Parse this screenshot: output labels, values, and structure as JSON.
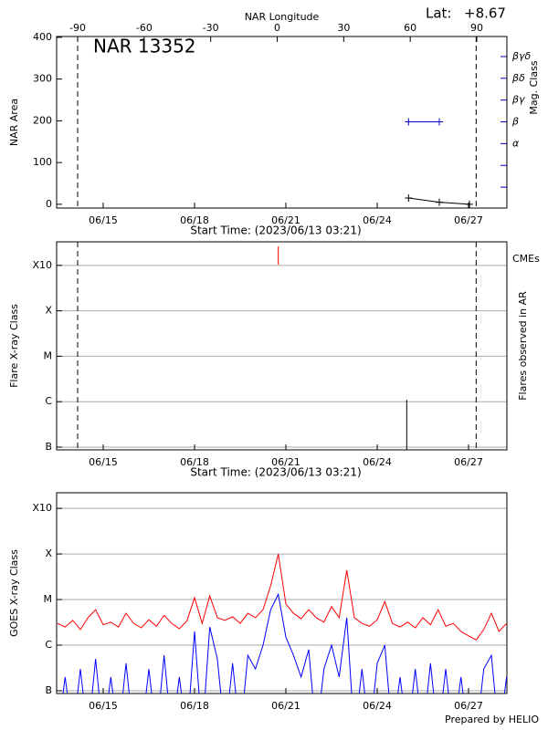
{
  "chart_data": [
    {
      "type": "line",
      "title": "NAR 13352",
      "annotations": [
        "Lat:",
        "+8.67"
      ],
      "xlabel": "Start Time: (2023/06/13 03:21)",
      "ylabel": "NAR Area",
      "y2label": "Mag. Class",
      "x2label": "NAR Longitude",
      "xlim": [
        13.47,
        28.26
      ],
      "xticks": [
        {
          "value": 15,
          "label": "06/15"
        },
        {
          "value": 18,
          "label": "06/18"
        },
        {
          "value": 21,
          "label": "06/21"
        },
        {
          "value": 24,
          "label": "06/24"
        },
        {
          "value": 27,
          "label": "06/27"
        }
      ],
      "ylim": [
        -9,
        402
      ],
      "yticks": [
        0,
        100,
        200,
        300,
        400
      ],
      "x2lim": [
        -99.5,
        103.6
      ],
      "x2ticks": [
        -90,
        -60,
        -30,
        0,
        30,
        60,
        90
      ],
      "y2lim": [
        -1.96,
        5.92
      ],
      "y2ticks": [
        {
          "value": -1,
          "label": null
        },
        {
          "value": 0,
          "label": null
        },
        {
          "value": 1,
          "label": "α"
        },
        {
          "value": 2,
          "label": "β"
        },
        {
          "value": 3,
          "label": "βγ"
        },
        {
          "value": 4,
          "label": "βδ"
        },
        {
          "value": 5,
          "label": "βγδ"
        }
      ],
      "y2color": "#0000cc",
      "limb_lines": [
        14.16,
        27.25
      ],
      "series": [
        {
          "x": [
            25.03,
            26.04,
            27.03
          ],
          "values": [
            15,
            5,
            0
          ],
          "color": "#000000"
        },
        {
          "x": [
            25.03,
            26.04
          ],
          "values": [
            2,
            2
          ],
          "color": "#0000cc",
          "axis": "y2"
        }
      ]
    },
    {
      "type": "bar",
      "xlabel": "Start Time: (2023/06/13 03:21)",
      "ylabel": "Flare X-ray Class",
      "y2label": "Flares observed in AR",
      "xlim": [
        13.47,
        28.26
      ],
      "xticks": [
        {
          "value": 15,
          "label": "06/15"
        },
        {
          "value": 18,
          "label": "06/18"
        },
        {
          "value": 21,
          "label": "06/21"
        },
        {
          "value": 24,
          "label": "06/24"
        },
        {
          "value": 27,
          "label": "06/27"
        }
      ],
      "ylog": true,
      "ylim": [
        8.7e-08,
        0.0033
      ],
      "yticks": [
        {
          "value": 1e-07,
          "label": "B"
        },
        {
          "value": 1e-06,
          "label": "C"
        },
        {
          "value": 1e-05,
          "label": "M"
        },
        {
          "value": 0.0001,
          "label": "X"
        },
        {
          "value": 0.001,
          "label": "X10"
        }
      ],
      "grid": true,
      "limb_lines": [
        14.16,
        27.25
      ],
      "series": [
        {
          "x": [
            24.97
          ],
          "values": [
            1.1e-06
          ],
          "color": "#000000"
        }
      ],
      "cmes": {
        "label": "CMEs",
        "color": "#ff0000",
        "x": [
          20.75
        ]
      }
    },
    {
      "type": "line",
      "ylabel": "GOES X-ray Class",
      "xlim": [
        13.47,
        28.26
      ],
      "xticks": [
        {
          "value": 15,
          "label": "06/15"
        },
        {
          "value": 18,
          "label": "06/18"
        },
        {
          "value": 21,
          "label": "06/21"
        },
        {
          "value": 24,
          "label": "06/24"
        },
        {
          "value": 27,
          "label": "06/27"
        }
      ],
      "ylog": true,
      "ylim": [
        8.7e-08,
        0.0022
      ],
      "yticks": [
        {
          "value": 1e-07,
          "label": "B"
        },
        {
          "value": 1e-06,
          "label": "C"
        },
        {
          "value": 1e-05,
          "label": "M"
        },
        {
          "value": 0.0001,
          "label": "X"
        },
        {
          "value": 0.001,
          "label": "X10"
        }
      ],
      "grid": true,
      "x": [
        13.5,
        13.75,
        14.0,
        14.25,
        14.5,
        14.75,
        15.0,
        15.25,
        15.5,
        15.75,
        16.0,
        16.25,
        16.5,
        16.75,
        17.0,
        17.25,
        17.5,
        17.75,
        18.0,
        18.25,
        18.5,
        18.75,
        19.0,
        19.25,
        19.5,
        19.75,
        20.0,
        20.25,
        20.5,
        20.75,
        21.0,
        21.25,
        21.5,
        21.75,
        22.0,
        22.25,
        22.5,
        22.75,
        23.0,
        23.25,
        23.5,
        23.75,
        24.0,
        24.25,
        24.5,
        24.75,
        25.0,
        25.25,
        25.5,
        25.75,
        26.0,
        26.25,
        26.5,
        26.75,
        27.0,
        27.25,
        27.5,
        27.75,
        28.0,
        28.25
      ],
      "series": [
        {
          "color": "#ff0000",
          "values": [
            3e-06,
            2.5e-06,
            3.5e-06,
            2.2e-06,
            4e-06,
            6e-06,
            2.8e-06,
            3.2e-06,
            2.5e-06,
            5e-06,
            3e-06,
            2.4e-06,
            3.6e-06,
            2.6e-06,
            4.5e-06,
            3e-06,
            2.3e-06,
            3.4e-06,
            1.1e-05,
            3e-06,
            1.2e-05,
            4e-06,
            3.5e-06,
            4.2e-06,
            3e-06,
            5e-06,
            4e-06,
            6e-06,
            2e-05,
            0.0001,
            8e-06,
            5e-06,
            3.8e-06,
            6e-06,
            4e-06,
            3.2e-06,
            7e-06,
            4e-06,
            4.4e-05,
            4e-06,
            3e-06,
            2.6e-06,
            3.6e-06,
            9e-06,
            3e-06,
            2.5e-06,
            3.2e-06,
            2.4e-06,
            4e-06,
            2.8e-06,
            6e-06,
            2.6e-06,
            3e-06,
            2e-06,
            1.6e-06,
            1.3e-06,
            2.2e-06,
            5e-06,
            2e-06,
            3e-06
          ]
        },
        {
          "color": "#0000ff",
          "values": [
            1e-08,
            2e-07,
            1e-08,
            3e-07,
            1e-08,
            5e-07,
            1e-08,
            2e-07,
            1e-08,
            4e-07,
            1e-08,
            1e-08,
            3e-07,
            1e-08,
            6e-07,
            1e-08,
            2e-07,
            1e-08,
            2e-06,
            1e-08,
            2.5e-06,
            5e-07,
            1e-08,
            4e-07,
            1e-08,
            6e-07,
            3e-07,
            1e-06,
            6e-06,
            1.3e-05,
            1.5e-06,
            6e-07,
            2e-07,
            8e-07,
            1e-08,
            3e-07,
            1e-06,
            2e-07,
            4e-06,
            1e-08,
            3e-07,
            1e-08,
            4e-07,
            1e-06,
            1e-08,
            2e-07,
            1e-08,
            3e-07,
            1e-08,
            4e-07,
            1e-08,
            3e-07,
            1e-08,
            2e-07,
            1e-08,
            1e-08,
            3e-07,
            6e-07,
            1e-08,
            2e-07
          ]
        }
      ]
    }
  ],
  "footer": "Prepared by HELIO"
}
